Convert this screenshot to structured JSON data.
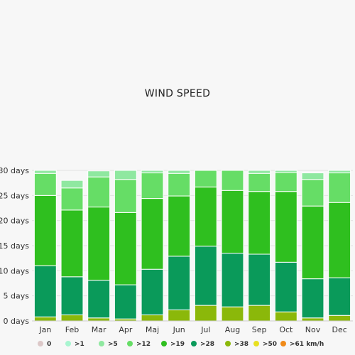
{
  "chart_data": {
    "type": "bar",
    "stacked": true,
    "title": "WIND SPEED",
    "categories": [
      "Jan",
      "Feb",
      "Mar",
      "Apr",
      "Maj",
      "Jun",
      "Jul",
      "Aug",
      "Sep",
      "Oct",
      "Nov",
      "Dec"
    ],
    "y_ticks": [
      "0 days",
      "5 days",
      "10 days",
      "15 days",
      "20 days",
      "25 days",
      "30 days"
    ],
    "ylim": [
      0,
      30
    ],
    "grid": true,
    "legend_position": "bottom",
    "series": [
      {
        "name": "0",
        "color": "#dcc8c8",
        "values": [
          0,
          0,
          0,
          0,
          0,
          0,
          0,
          0,
          0,
          0,
          0,
          0
        ]
      },
      {
        "name": ">1",
        "color": "#a8f5d0",
        "values": [
          0,
          0,
          0,
          0,
          0,
          0,
          0,
          0,
          0,
          0,
          0,
          0
        ]
      },
      {
        "name": ">5",
        "color": "#8fe8a0",
        "values": [
          0.6,
          1.5,
          1.2,
          1.8,
          0.5,
          0.6,
          0,
          0,
          0.6,
          0.4,
          1.3,
          0.5
        ]
      },
      {
        "name": ">12",
        "color": "#66dd66",
        "values": [
          4.4,
          4.4,
          6.0,
          6.6,
          5.1,
          4.5,
          3.3,
          4.0,
          3.6,
          3.8,
          5.3,
          5.9
        ]
      },
      {
        "name": ">19",
        "color": "#2fbf1f",
        "values": [
          14.0,
          13.3,
          14.6,
          14.4,
          14.1,
          12.0,
          11.8,
          12.5,
          12.5,
          14.1,
          14.5,
          15.0
        ]
      },
      {
        "name": ">28",
        "color": "#0a9a5a",
        "values": [
          10.2,
          7.6,
          7.5,
          6.8,
          9.1,
          10.7,
          11.8,
          10.7,
          10.2,
          9.9,
          7.8,
          7.5
        ]
      },
      {
        "name": ">38",
        "color": "#8bb80a",
        "values": [
          0.8,
          1.2,
          0.6,
          0.4,
          1.2,
          2.2,
          3.1,
          2.8,
          3.1,
          1.8,
          0.6,
          1.1
        ]
      },
      {
        "name": ">50",
        "color": "#e8e020",
        "values": [
          0,
          0,
          0,
          0,
          0,
          0,
          0,
          0,
          0,
          0,
          0,
          0
        ]
      },
      {
        "name": ">61 km/h",
        "color": "#f08a18",
        "values": [
          0,
          0,
          0,
          0,
          0,
          0,
          0,
          0,
          0,
          0,
          0,
          0
        ]
      }
    ]
  },
  "colors": {
    "background": "#f7f7f7",
    "gridline": "#e2e2e2",
    "axis": "#cccccc",
    "bar_separator": "#ffffff"
  }
}
